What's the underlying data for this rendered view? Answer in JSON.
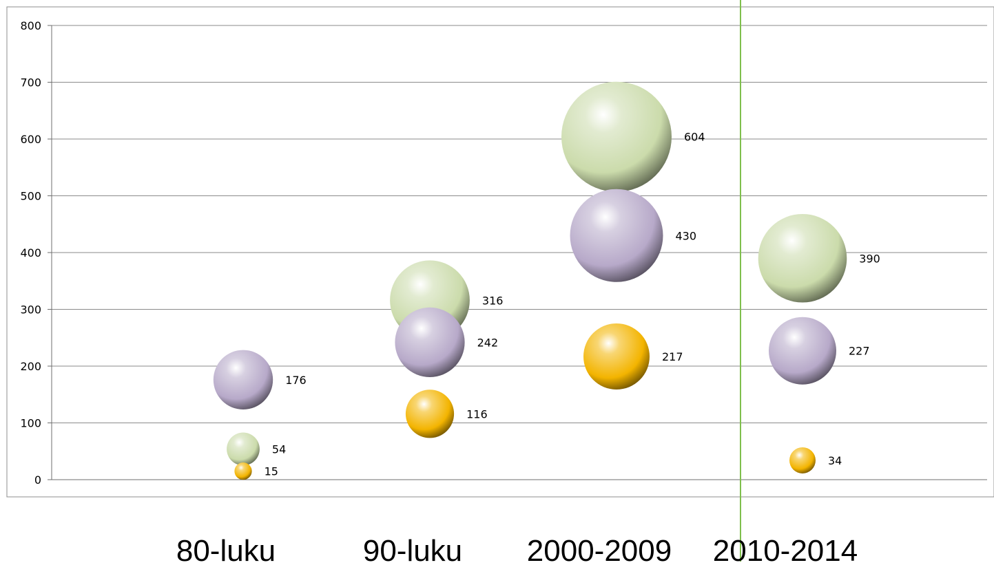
{
  "chart_data": {
    "type": "bubble",
    "categories": [
      "80-luku",
      "90-luku",
      "2000-2009",
      "2010-2014"
    ],
    "ylim": [
      0,
      800
    ],
    "yticks": [
      0,
      100,
      200,
      300,
      400,
      500,
      600,
      700,
      800
    ],
    "grid": true,
    "legend": "none",
    "series": [
      {
        "color": "#cbdbab",
        "values": [
          54,
          316,
          604,
          390
        ]
      },
      {
        "color": "#b7a9c9",
        "values": [
          176,
          242,
          430,
          227
        ]
      },
      {
        "color": "#f3b400",
        "values": [
          15,
          116,
          217,
          34
        ]
      }
    ],
    "data_labels": [
      [
        "54",
        "316",
        "604",
        "390"
      ],
      [
        "176",
        "242",
        "430",
        "227"
      ],
      [
        "15",
        "116",
        "217",
        "34"
      ]
    ],
    "accent_line_color": "#7fbf4d"
  }
}
